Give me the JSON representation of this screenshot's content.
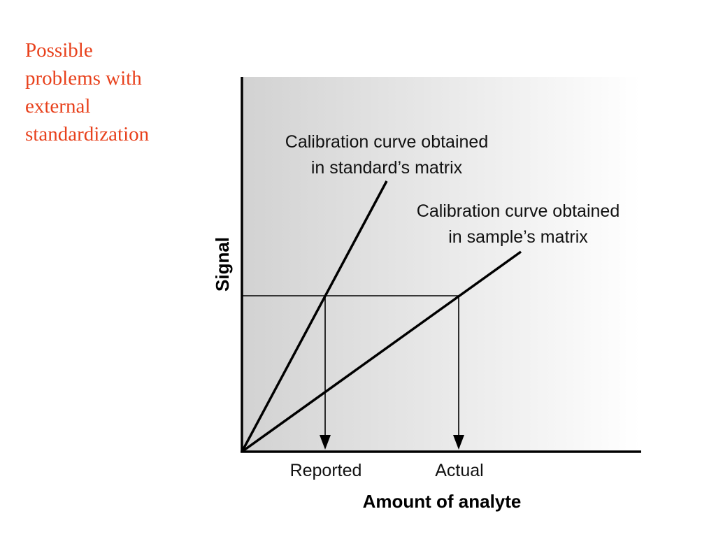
{
  "slide": {
    "title_lines": [
      "Possible",
      "problems with",
      "external",
      "standardization"
    ],
    "title_color": "#e8411c"
  },
  "diagram": {
    "x_axis_title": "Amount of analyte",
    "y_axis_title": "Signal",
    "curves": {
      "standard_matrix": {
        "label_lines": [
          "Calibration curve obtained",
          "in standard’s matrix"
        ]
      },
      "sample_matrix": {
        "label_lines": [
          "Calibration curve obtained",
          "in sample’s matrix"
        ]
      }
    },
    "markers": {
      "reported": "Reported",
      "actual": "Actual"
    },
    "panel_gradient": [
      "#d2d2d2",
      "#ffffff"
    ],
    "line_color": "#000000"
  }
}
